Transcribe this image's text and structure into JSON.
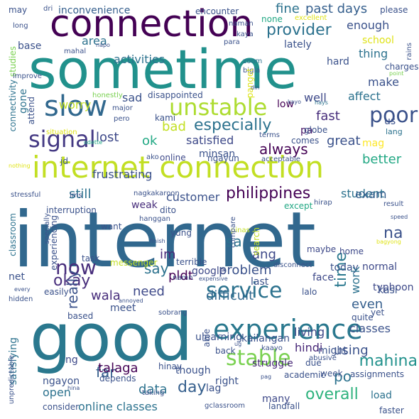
{
  "words": [
    {
      "text": "internet",
      "color": "#31688e"
    },
    {
      "text": "good",
      "color": "#2a788e"
    },
    {
      "text": "sometime",
      "color": "#21918c"
    },
    {
      "text": "internet connection",
      "color": "#c2df23"
    },
    {
      "text": "connection",
      "color": "#440154"
    },
    {
      "text": "experience",
      "color": "#2a788e"
    },
    {
      "text": "service",
      "color": "#2c728e"
    },
    {
      "text": "slow",
      "color": "#31688e"
    },
    {
      "text": "unstable",
      "color": "#addc30"
    },
    {
      "text": "signal",
      "color": "#443983"
    },
    {
      "text": "poor",
      "color": "#3b528b"
    },
    {
      "text": "stable",
      "color": "#7ad151"
    },
    {
      "text": "now",
      "color": "#472d7b"
    },
    {
      "text": "philippines",
      "color": "#440154"
    },
    {
      "text": "always",
      "color": "#440154"
    },
    {
      "text": "especially",
      "color": "#2c728e"
    },
    {
      "text": "provider",
      "color": "#2c728e"
    },
    {
      "text": "mahina",
      "color": "#21918c"
    },
    {
      "text": "time",
      "color": "#2a788e"
    },
    {
      "text": "okay",
      "color": "#472d7b"
    },
    {
      "text": "overall",
      "color": "#2db27d"
    },
    {
      "text": "really",
      "color": "#3b528b"
    },
    {
      "text": "na",
      "color": "#3b528b"
    },
    {
      "text": "day",
      "color": "#355f8d"
    },
    {
      "text": "po",
      "color": "#2c728e"
    },
    {
      "text": "fine",
      "color": "#2c728e"
    },
    {
      "text": "past days",
      "color": "#355f8d"
    },
    {
      "text": "activities",
      "color": "#2c728e"
    },
    {
      "text": "area",
      "color": "#2c728e"
    },
    {
      "text": "enough",
      "color": "#3b528b"
    },
    {
      "text": "inconvenience",
      "color": "#355f8d"
    },
    {
      "text": "frustrating",
      "color": "#3b528b"
    },
    {
      "text": "fast",
      "color": "#472d7b"
    },
    {
      "text": "bad",
      "color": "#c2df23"
    },
    {
      "text": "lost",
      "color": "#3e4989"
    },
    {
      "text": "satisfied",
      "color": "#3e4989"
    },
    {
      "text": "ok",
      "color": "#22a884"
    },
    {
      "text": "great",
      "color": "#3b528b"
    },
    {
      "text": "sad",
      "color": "#3b528b"
    },
    {
      "text": "make",
      "color": "#3b528b"
    },
    {
      "text": "still",
      "color": "#2c728e"
    },
    {
      "text": "customer",
      "color": "#3b528b"
    },
    {
      "text": "pldt",
      "color": "#440154"
    },
    {
      "text": "problem",
      "color": "#3b528b"
    },
    {
      "text": "ang",
      "color": "#3e4989"
    },
    {
      "text": "im",
      "color": "#482878"
    },
    {
      "text": "say",
      "color": "#2c728e"
    },
    {
      "text": "difficult",
      "color": "#31688e"
    },
    {
      "text": "far",
      "color": "#355f8d"
    },
    {
      "text": "data",
      "color": "#2c728e"
    },
    {
      "text": "online classes",
      "color": "#2c728e"
    },
    {
      "text": "talaga",
      "color": "#440154"
    },
    {
      "text": "though",
      "color": "#3b528b"
    },
    {
      "text": "lag",
      "color": "#3b528b"
    },
    {
      "text": "struggle",
      "color": "#482878"
    },
    {
      "text": "open",
      "color": "#2c728e"
    },
    {
      "text": "need",
      "color": "#3e4989"
    },
    {
      "text": "google",
      "color": "#3e4989"
    },
    {
      "text": "sa",
      "color": "#2c728e"
    },
    {
      "text": "wala",
      "color": "#472d7b"
    },
    {
      "text": "meet",
      "color": "#3b528b"
    },
    {
      "text": "using",
      "color": "#3b528b"
    },
    {
      "text": "even",
      "color": "#355f8d"
    },
    {
      "text": "classes",
      "color": "#3b528b"
    },
    {
      "text": "living",
      "color": "#3e4989"
    },
    {
      "text": "hindi",
      "color": "#482878"
    },
    {
      "text": "might",
      "color": "#3b528b"
    },
    {
      "text": "student",
      "color": "#2c728e"
    },
    {
      "text": "exam",
      "color": "#355f8d"
    },
    {
      "text": "better",
      "color": "#22a884"
    },
    {
      "text": "mag",
      "color": "#fde725"
    },
    {
      "text": "school",
      "color": "#dfe318"
    },
    {
      "text": "thing",
      "color": "#2c728e"
    },
    {
      "text": "hard",
      "color": "#3b528b"
    },
    {
      "text": "lately",
      "color": "#3b528b"
    },
    {
      "text": "base",
      "color": "#3b528b"
    },
    {
      "text": "well",
      "color": "#3e4989"
    },
    {
      "text": "affect",
      "color": "#2c728e"
    },
    {
      "text": "low",
      "color": "#440154"
    },
    {
      "text": "pa",
      "color": "#481567"
    },
    {
      "text": "globe",
      "color": "#3b528b"
    },
    {
      "text": "us",
      "color": "#3b528b"
    },
    {
      "text": "worry",
      "color": "#c2df23"
    },
    {
      "text": "lang",
      "color": "#2c728e"
    },
    {
      "text": "weak",
      "color": "#472d7b"
    },
    {
      "text": "minsan",
      "color": "#3b528b"
    },
    {
      "text": "net",
      "color": "#3b528b"
    },
    {
      "text": "normal",
      "color": "#3e4989"
    },
    {
      "text": "today",
      "color": "#3b528b"
    },
    {
      "text": "last",
      "color": "#3b528b"
    },
    {
      "text": "work",
      "color": "#2c728e"
    },
    {
      "text": "typhoon",
      "color": "#3e4989"
    },
    {
      "text": "quite",
      "color": "#3b528b"
    },
    {
      "text": "face",
      "color": "#3e4989"
    },
    {
      "text": "lalo",
      "color": "#3b528b"
    },
    {
      "text": "kasi",
      "color": "#3b528b"
    },
    {
      "text": "home",
      "color": "#3e4989"
    },
    {
      "text": "maybe",
      "color": "#3e4989"
    },
    {
      "text": "ulearning",
      "color": "#3b528b"
    },
    {
      "text": "kailangan",
      "color": "#3b528b"
    },
    {
      "text": "satisfying",
      "color": "#2c728e"
    },
    {
      "text": "ng",
      "color": "#3e4989"
    },
    {
      "text": "ngayon",
      "color": "#3b528b"
    },
    {
      "text": "consider",
      "color": "#3b528b"
    },
    {
      "text": "right",
      "color": "#3b528b"
    },
    {
      "text": "many",
      "color": "#3e4989"
    },
    {
      "text": "due",
      "color": "#3b528b"
    },
    {
      "text": "week",
      "color": "#3b528b"
    },
    {
      "text": "load",
      "color": "#2c728e"
    },
    {
      "text": "faster",
      "color": "#3b528b"
    },
    {
      "text": "connectivity",
      "color": "#2c728e"
    },
    {
      "text": "gone",
      "color": "#2c728e"
    },
    {
      "text": "attend",
      "color": "#3b528b"
    },
    {
      "text": "studies",
      "color": "#7ad151"
    },
    {
      "text": "improve",
      "color": "#3b528b"
    },
    {
      "text": "mahal",
      "color": "#3b528b"
    },
    {
      "text": "naman",
      "color": "#3b528b"
    },
    {
      "text": "none",
      "color": "#22a884"
    },
    {
      "text": "excellent",
      "color": "#dfe318"
    },
    {
      "text": "please",
      "color": "#3b528b"
    },
    {
      "text": "rains",
      "color": "#3b528b"
    },
    {
      "text": "charges",
      "color": "#3b528b"
    },
    {
      "text": "point",
      "color": "#7ad151"
    },
    {
      "text": "para",
      "color": "#3b528b"
    },
    {
      "text": "kaya",
      "color": "#3b528b"
    },
    {
      "text": "encounter",
      "color": "#3b528b"
    },
    {
      "text": "dri",
      "color": "#3b528b"
    },
    {
      "text": "may",
      "color": "#3b528b"
    },
    {
      "text": "long",
      "color": "#3b528b"
    },
    {
      "text": "napo",
      "color": "#3b528b"
    },
    {
      "text": "zoom",
      "color": "#2c728e"
    },
    {
      "text": "bigla",
      "color": "#3b528b"
    },
    {
      "text": "panget",
      "color": "#dfe318"
    },
    {
      "text": "din",
      "color": "#3b528b"
    },
    {
      "text": "kayo",
      "color": "#3b528b"
    },
    {
      "text": "hays",
      "color": "#2c728e"
    },
    {
      "text": "honestly",
      "color": "#7ad151"
    },
    {
      "text": "disappointed",
      "color": "#3b528b"
    },
    {
      "text": "major",
      "color": "#3b528b"
    },
    {
      "text": "kami",
      "color": "#3b528b"
    },
    {
      "text": "pero",
      "color": "#3b528b"
    },
    {
      "text": "situation",
      "color": "#dfe318"
    },
    {
      "text": "odette",
      "color": "#22a884"
    },
    {
      "text": "comes",
      "color": "#3b528b"
    },
    {
      "text": "terms",
      "color": "#3b528b"
    },
    {
      "text": "online",
      "color": "#3e4989"
    },
    {
      "text": "jd",
      "color": "#3b528b"
    },
    {
      "text": "ako",
      "color": "#3b528b"
    },
    {
      "text": "ngayun",
      "color": "#3b528b"
    },
    {
      "text": "acceptable",
      "color": "#3b528b"
    },
    {
      "text": "nothing",
      "color": "#dfe318"
    },
    {
      "text": "stressful",
      "color": "#3b528b"
    },
    {
      "text": "lms",
      "color": "#3b528b"
    },
    {
      "text": "nagkakaroon",
      "color": "#3b528b"
    },
    {
      "text": "except",
      "color": "#22a884"
    },
    {
      "text": "hirap",
      "color": "#3b528b"
    },
    {
      "text": "result",
      "color": "#3b528b"
    },
    {
      "text": "speed",
      "color": "#3b528b"
    },
    {
      "text": "classroom",
      "color": "#2c728e"
    },
    {
      "text": "specially",
      "color": "#3b528b"
    },
    {
      "text": "interruption",
      "color": "#3b528b"
    },
    {
      "text": "dito",
      "color": "#3b528b"
    },
    {
      "text": "hanggan",
      "color": "#3b528b"
    },
    {
      "text": "pinas",
      "color": "#c2df23"
    },
    {
      "text": "search",
      "color": "#c2df23"
    },
    {
      "text": "want",
      "color": "#3b528b"
    },
    {
      "text": "yung",
      "color": "#3b528b"
    },
    {
      "text": "compare",
      "color": "#3b528b"
    },
    {
      "text": "finish",
      "color": "#3b528b"
    },
    {
      "text": "bagyong",
      "color": "#dfe318"
    },
    {
      "text": "experiencing",
      "color": "#3b528b"
    },
    {
      "text": "task",
      "color": "#3b528b"
    },
    {
      "text": "terrible",
      "color": "#3b528b"
    },
    {
      "text": "messenger",
      "color": "#c2df23"
    },
    {
      "text": "namn",
      "color": "#3b528b"
    },
    {
      "text": "expensive",
      "color": "#3b528b"
    },
    {
      "text": "disconnect",
      "color": "#3b528b"
    },
    {
      "text": "every",
      "color": "#3b528b"
    },
    {
      "text": "easily",
      "color": "#3b528b"
    },
    {
      "text": "hidden",
      "color": "#3b528b"
    },
    {
      "text": "annoyed",
      "color": "#3b528b"
    },
    {
      "text": "based",
      "color": "#3b528b"
    },
    {
      "text": "sobrang",
      "color": "#3b528b"
    },
    {
      "text": "yet",
      "color": "#3b528b"
    },
    {
      "text": "able",
      "color": "#3b528b"
    },
    {
      "text": "back",
      "color": "#3b528b"
    },
    {
      "text": "ug",
      "color": "#3b528b"
    },
    {
      "text": "kaayo",
      "color": "#3b528b"
    },
    {
      "text": "abusive",
      "color": "#3b528b"
    },
    {
      "text": "hinay",
      "color": "#3b528b"
    },
    {
      "text": "depends",
      "color": "#3b528b"
    },
    {
      "text": "taking",
      "color": "#3b528b"
    },
    {
      "text": "pag",
      "color": "#3b528b"
    },
    {
      "text": "academic",
      "color": "#3b528b"
    },
    {
      "text": "assignments",
      "color": "#3b528b"
    },
    {
      "text": "hina",
      "color": "#3b528b"
    },
    {
      "text": "unpredictable",
      "color": "#3b528b"
    },
    {
      "text": "gclassroom",
      "color": "#3b528b"
    },
    {
      "text": "landfall",
      "color": "#3b528b"
    }
  ]
}
